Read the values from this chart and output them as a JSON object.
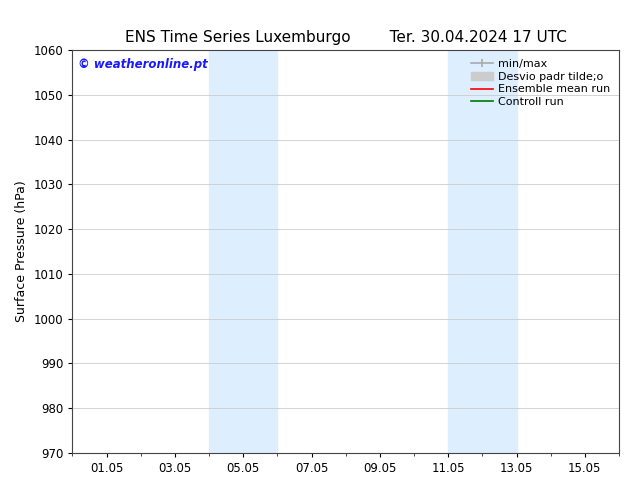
{
  "title_left": "ENS Time Series Luxemburgo",
  "title_right": "Ter. 30.04.2024 17 UTC",
  "ylabel": "Surface Pressure (hPa)",
  "xlabel": "",
  "ylim": [
    970,
    1060
  ],
  "yticks": [
    970,
    980,
    990,
    1000,
    1010,
    1020,
    1030,
    1040,
    1050,
    1060
  ],
  "xtick_labels": [
    "01.05",
    "03.05",
    "05.05",
    "07.05",
    "09.05",
    "11.05",
    "13.05",
    "15.05"
  ],
  "xtick_positions": [
    1,
    3,
    5,
    7,
    9,
    11,
    13,
    15
  ],
  "xlim": [
    0,
    16
  ],
  "shaded_bands": [
    {
      "x_start": 4.0,
      "x_end": 6.0,
      "color": "#ddeeff"
    },
    {
      "x_start": 11.0,
      "x_end": 13.0,
      "color": "#ddeeff"
    }
  ],
  "watermark_text": "© weatheronline.pt",
  "watermark_color": "#1a1aff",
  "bg_color": "#ffffff",
  "plot_bg_color": "#ffffff",
  "grid_color": "#cccccc",
  "title_fontsize": 11,
  "tick_fontsize": 8.5,
  "legend_fontsize": 8,
  "ylabel_fontsize": 9
}
